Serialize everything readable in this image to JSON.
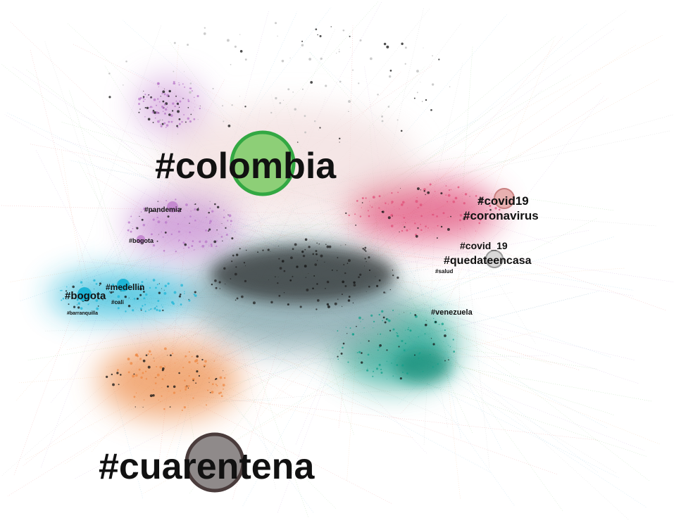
{
  "nodes": [
    {
      "label": "#colombia"
    },
    {
      "label": "#cuarentena"
    },
    {
      "label": "#covid19"
    },
    {
      "label": "#coronavirus"
    },
    {
      "label": "#covid_19"
    },
    {
      "label": "#quedateencasa"
    },
    {
      "label": "#bogota"
    },
    {
      "label": "#medellin"
    },
    {
      "label": "#venezuela"
    },
    {
      "label": "#pandemia"
    },
    {
      "label": "#bogota"
    },
    {
      "label": "#cali"
    },
    {
      "label": "#salud"
    },
    {
      "label": "#barranquilla"
    }
  ]
}
